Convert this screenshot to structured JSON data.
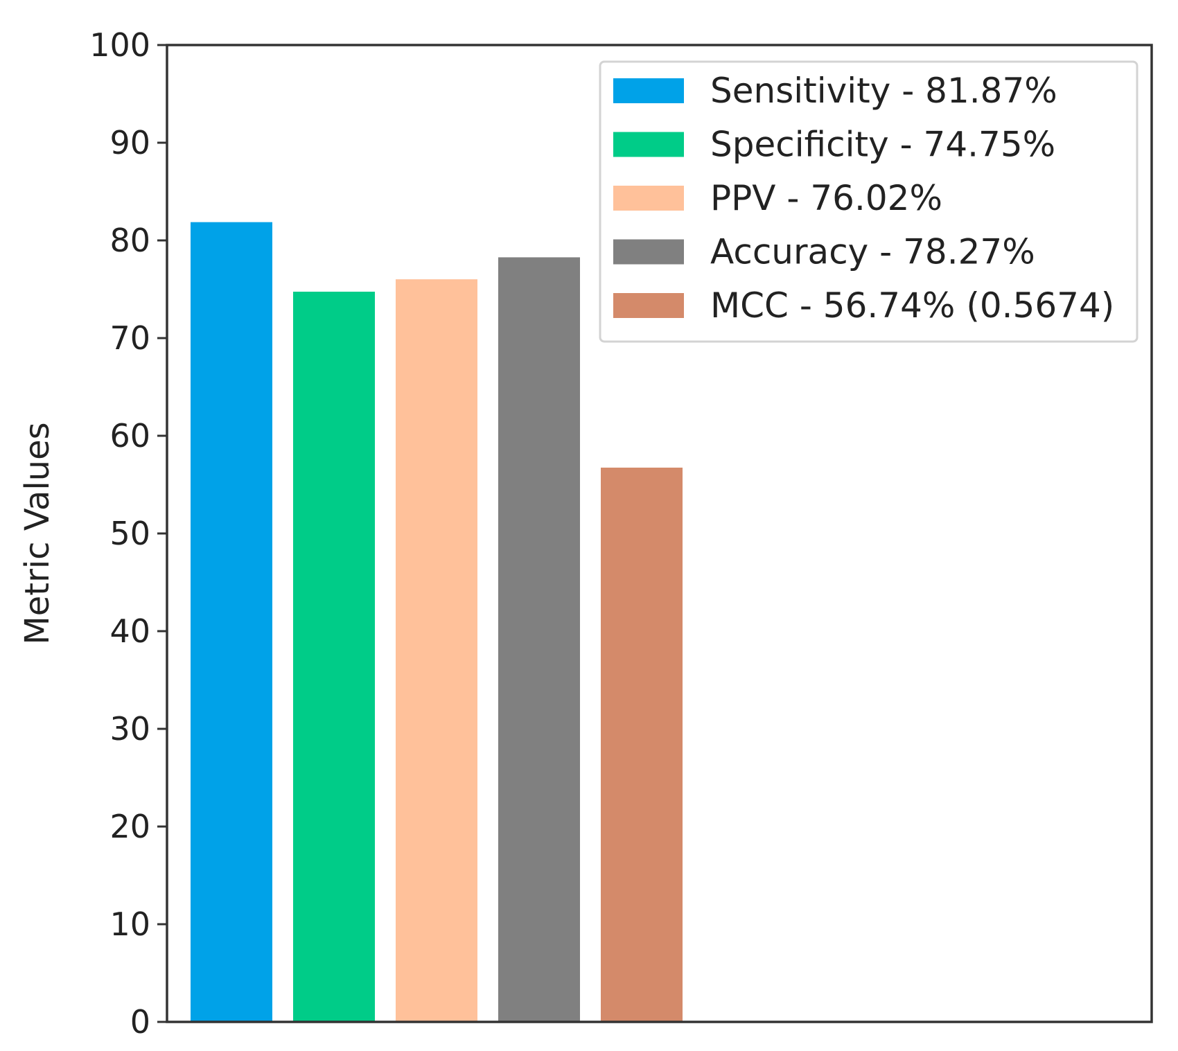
{
  "chart_data": {
    "type": "bar",
    "title": "",
    "xlabel": "",
    "ylabel": "Metric Values",
    "ylim": [
      0,
      100
    ],
    "yticks": [
      0,
      10,
      20,
      30,
      40,
      50,
      60,
      70,
      80,
      90,
      100
    ],
    "grid": false,
    "legend_position": "top-right",
    "categories": [
      "Sensitivity",
      "Specificity",
      "PPV",
      "Accuracy",
      "MCC"
    ],
    "values": [
      81.87,
      74.75,
      76.02,
      78.27,
      56.74
    ],
    "colors": [
      "#00a2e8",
      "#00cc88",
      "#ffc19a",
      "#808080",
      "#d48a6a"
    ],
    "legend": [
      "Sensitivity - 81.87%",
      "Specificity - 74.75%",
      "PPV - 76.02%",
      "Accuracy - 78.27%",
      "MCC - 56.74% (0.5674)"
    ]
  }
}
